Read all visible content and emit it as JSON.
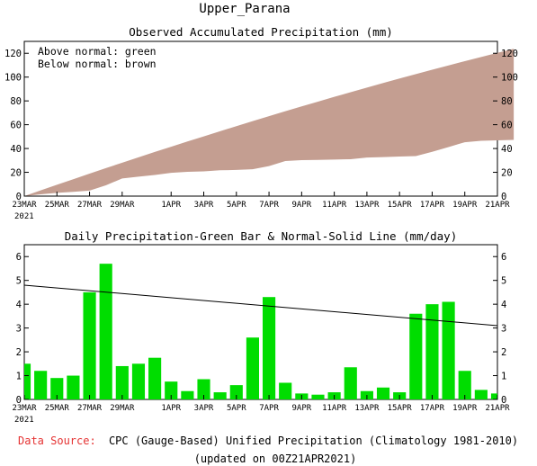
{
  "page_title": "Upper_Parana",
  "footer": {
    "source_label": "Data Source:",
    "source_text": "CPC (Gauge-Based) Unified Precipitation (Climatology 1981-2010)",
    "updated": "(updated on 00Z21APR2021)"
  },
  "colors": {
    "fill_between": "#c49e91",
    "bars": "#00dd00",
    "source_label": "#e53333"
  },
  "chart_data": [
    {
      "type": "area",
      "title": "Observed Accumulated Precipitation (mm)",
      "legend": [
        {
          "text": "Above normal: green"
        },
        {
          "text": "Below normal: brown"
        }
      ],
      "legend_placement": "top-left",
      "x_start": "2021-03-23",
      "x_end": "2021-04-21",
      "x_tick_labels": [
        "23MAR",
        "25MAR",
        "27MAR",
        "29MAR",
        "1APR",
        "3APR",
        "5APR",
        "7APR",
        "9APR",
        "11APR",
        "13APR",
        "15APR",
        "17APR",
        "19APR",
        "21APR"
      ],
      "x_year_label": "2021",
      "ylim": [
        0,
        130
      ],
      "y_ticks": [
        0,
        20,
        40,
        60,
        80,
        100,
        120
      ],
      "series": [
        {
          "role": "observed",
          "values": [
            1.5,
            2.7,
            3.6,
            4.6,
            9.1,
            14.8,
            16.3,
            17.8,
            19.6,
            20.4,
            20.8,
            21.7,
            22.0,
            22.6,
            25.2,
            29.5,
            30.2,
            30.4,
            30.7,
            31.0,
            32.4,
            32.8,
            33.3,
            33.6,
            37.2,
            41.2,
            45.3,
            46.5,
            46.9,
            47.2
          ]
        },
        {
          "role": "normal",
          "values": [
            4.8,
            9.5,
            14.2,
            18.9,
            23.5,
            28.1,
            32.6,
            37.1,
            41.5,
            45.9,
            50.2,
            54.5,
            58.8,
            63.0,
            67.2,
            71.3,
            75.4,
            79.4,
            83.4,
            87.3,
            91.2,
            95.0,
            98.8,
            102.5,
            106.2,
            109.8,
            113.4,
            116.9,
            120.4,
            123.8
          ]
        }
      ]
    },
    {
      "type": "bar",
      "title": "Daily Precipitation-Green Bar & Normal-Solid Line (mm/day)",
      "x_start": "2021-03-23",
      "x_end": "2021-04-21",
      "x_tick_labels": [
        "23MAR",
        "25MAR",
        "27MAR",
        "29MAR",
        "1APR",
        "3APR",
        "5APR",
        "7APR",
        "9APR",
        "11APR",
        "13APR",
        "15APR",
        "17APR",
        "19APR",
        "21APR"
      ],
      "x_year_label": "2021",
      "ylim": [
        0,
        6.5
      ],
      "y_ticks": [
        0,
        1,
        2,
        3,
        4,
        5,
        6
      ],
      "series": [
        {
          "role": "daily",
          "values": [
            1.5,
            1.2,
            0.9,
            1.0,
            4.5,
            5.7,
            1.4,
            1.5,
            1.75,
            0.75,
            0.35,
            0.85,
            0.3,
            0.6,
            2.6,
            4.3,
            0.7,
            0.25,
            0.2,
            0.3,
            1.35,
            0.35,
            0.5,
            0.3,
            3.6,
            4.0,
            4.1,
            1.2,
            0.4,
            0.25
          ]
        },
        {
          "role": "normal",
          "values": [
            4.8,
            3.1
          ]
        }
      ]
    }
  ]
}
